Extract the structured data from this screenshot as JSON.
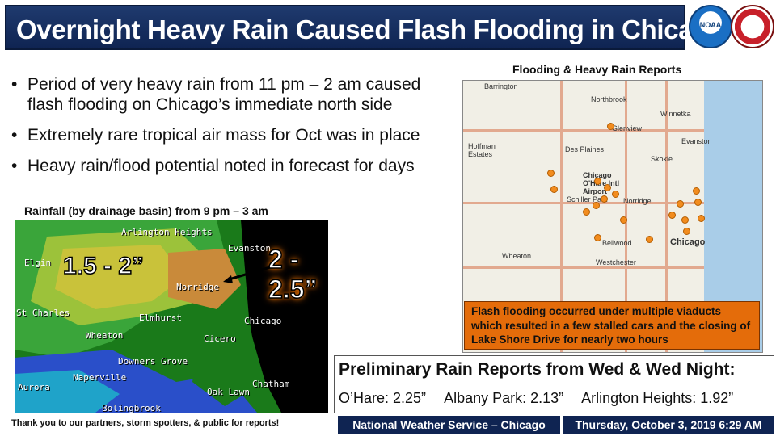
{
  "title": "Overnight Heavy Rain Caused Flash Flooding in Chicago",
  "logos": {
    "noaa_text": "NOAA",
    "nws_text": "NATIONAL WEATHER SERVICE"
  },
  "bullets": [
    "Period of very heavy rain from 11 pm – 2 am caused flash flooding on Chicago’s immediate north side",
    "Extremely rare tropical air mass for Oct was in place",
    "Heavy rain/flood potential noted in forecast for days"
  ],
  "rainfall_map": {
    "caption": "Rainfall (by drainage basin) from 9 pm – 3 am",
    "overlay_left": "1.5 - 2”",
    "overlay_right": "2 - 2.5”",
    "place_labels": [
      "Arlington Heights",
      "Evanston",
      "Elgin",
      "Norridge",
      "St Charles",
      "Elmhurst",
      "Chicago",
      "Wheaton",
      "Cicero",
      "Downers Grove",
      "Naperville",
      "Aurora",
      "Bolingbrook",
      "Oak Lawn",
      "Chatham"
    ]
  },
  "reports_map": {
    "caption": "Flooding & Heavy Rain Reports",
    "place_labels": [
      "Barrington",
      "Northbrook",
      "Winnetka",
      "Glenview",
      "Evanston",
      "Hoffman Estates",
      "Des Plaines",
      "Skokie",
      "Chicago O'Hare Intl Airport",
      "Schiller Park",
      "Norridge",
      "Bellwood",
      "Chicago",
      "Wheaton",
      "Westchester"
    ],
    "callout": "Flash flooding occurred under multiple viaducts which resulted in a few stalled cars and the closing of Lake Shore Drive for nearly two hours"
  },
  "thanks": "Thank you to our partners, storm spotters, & public for reports!",
  "preliminary": {
    "title": "Preliminary Rain Reports from Wed & Wed Night:",
    "reports": [
      "O’Hare:  2.25”",
      "Albany Park: 2.13”",
      "Arlington Heights: 1.92”"
    ]
  },
  "footer": {
    "office": "National Weather Service – Chicago",
    "timestamp": "Thursday, October 3, 2019 6:29 AM"
  },
  "colors": {
    "title_bg": "#1f3a6e",
    "callout_bg": "#e46c0a",
    "report_dot": "#f28c1e"
  }
}
